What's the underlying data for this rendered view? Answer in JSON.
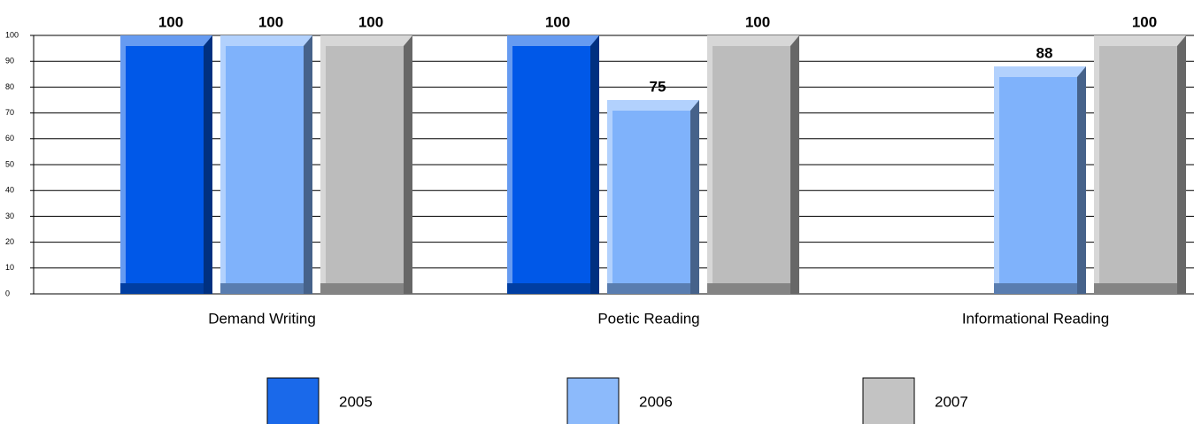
{
  "chart_data": {
    "type": "bar",
    "categories": [
      "Demand Writing",
      "Poetic Reading",
      "Informational Reading"
    ],
    "series": [
      {
        "name": "2005",
        "color": "#0058e8",
        "values": [
          100,
          100,
          null
        ]
      },
      {
        "name": "2006",
        "color": "#7fb2fb",
        "values": [
          100,
          75,
          88
        ]
      },
      {
        "name": "2007",
        "color": "#bcbcbc",
        "values": [
          100,
          100,
          100
        ]
      }
    ],
    "ylim": [
      0,
      100
    ],
    "yticks": [
      0,
      10,
      20,
      30,
      40,
      50,
      60,
      70,
      80,
      90,
      100
    ],
    "grid": true,
    "legend": "bottom"
  }
}
